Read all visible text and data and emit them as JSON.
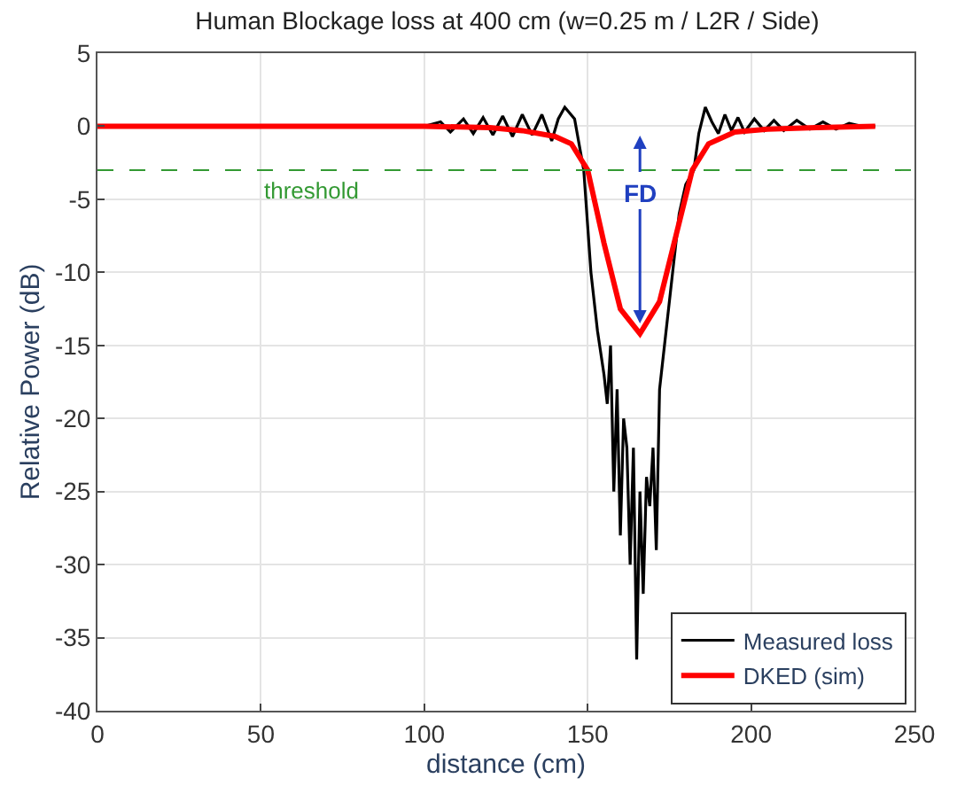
{
  "chart_data": {
    "type": "line",
    "title": "Human Blockage loss at 400 cm (w=0.25 m / L2R / Side)",
    "xlabel": "distance (cm)",
    "ylabel": "Relative Power (dB)",
    "xlim": [
      0,
      250
    ],
    "xticks": [
      0,
      50,
      100,
      150,
      200,
      250
    ],
    "ylim": [
      -40,
      5
    ],
    "yticks": [
      -40,
      -35,
      -30,
      -25,
      -20,
      -15,
      -10,
      -5,
      0,
      5
    ],
    "grid": true,
    "legend": "bottom right",
    "series": [
      {
        "name": "Measured loss",
        "color": "#000000",
        "x": [
          0,
          50,
          100,
          105,
          108,
          112,
          115,
          118,
          121,
          124,
          127,
          130,
          133,
          136,
          139,
          141,
          143,
          146,
          148.8,
          151,
          153,
          155,
          156,
          157,
          158,
          159,
          160,
          161,
          162,
          163,
          164,
          165,
          166,
          167,
          168,
          169,
          170,
          171,
          172,
          174,
          176,
          178,
          180,
          182.5,
          184,
          186,
          188,
          190,
          192,
          194,
          196,
          198,
          201,
          204,
          207,
          210,
          214,
          218,
          222,
          226,
          230,
          234,
          238
        ],
        "values": [
          0,
          0,
          0,
          0.3,
          -0.4,
          0.5,
          -0.5,
          0.6,
          -0.6,
          0.7,
          -0.7,
          0.8,
          -0.6,
          0.8,
          -1,
          0.5,
          1.3,
          0.5,
          -3,
          -10,
          -14,
          -17,
          -19,
          -15,
          -25,
          -18,
          -28,
          -20,
          -22,
          -30,
          -22,
          -36.5,
          -25,
          -32,
          -24,
          -26,
          -22,
          -29,
          -18,
          -14,
          -10,
          -6,
          -4,
          -3,
          -0.5,
          1.3,
          0.3,
          -0.5,
          0.8,
          -0.3,
          0.6,
          -0.4,
          0.5,
          -0.3,
          0.4,
          -0.3,
          0.4,
          -0.2,
          0.3,
          -0.2,
          0.2,
          0,
          0
        ]
      },
      {
        "name": "DKED (sim)",
        "color": "#ff0000",
        "x": [
          0,
          50,
          100,
          120,
          130,
          140,
          145,
          150,
          155,
          160,
          166,
          172,
          177,
          182,
          187,
          195,
          205,
          220,
          238
        ],
        "values": [
          0,
          0,
          0,
          -0.1,
          -0.3,
          -0.7,
          -1.2,
          -3,
          -8,
          -12.5,
          -14.2,
          -12,
          -7.5,
          -3,
          -1.2,
          -0.4,
          -0.2,
          -0.1,
          0
        ]
      }
    ],
    "ref_lines": [
      {
        "axis": "y",
        "value": -3,
        "label": "threshold",
        "color": "#339933",
        "line_style": "dashed"
      }
    ],
    "annotations": [
      {
        "text": "FD",
        "x": 166,
        "y": -13.5
      }
    ]
  }
}
